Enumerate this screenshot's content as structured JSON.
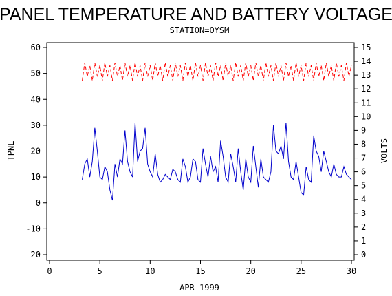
{
  "chart_data": {
    "type": "line",
    "title": "PANEL TEMPERATURE AND BATTERY VOLTAGE",
    "subtitle": "STATION=OYSM",
    "x_label": "APR 1999",
    "y_label": "TPNL",
    "y2_label": "VOLTS",
    "x": [
      3.25,
      3.5,
      3.75,
      4,
      4.25,
      4.5,
      4.75,
      5,
      5.25,
      5.5,
      5.75,
      6,
      6.25,
      6.5,
      6.75,
      7,
      7.25,
      7.5,
      7.75,
      8,
      8.25,
      8.5,
      8.75,
      9,
      9.25,
      9.5,
      9.75,
      10,
      10.25,
      10.5,
      10.75,
      11,
      11.25,
      11.5,
      11.75,
      12,
      12.25,
      12.5,
      12.75,
      13,
      13.25,
      13.5,
      13.75,
      14,
      14.25,
      14.5,
      14.75,
      15,
      15.25,
      15.5,
      15.75,
      16,
      16.25,
      16.5,
      16.75,
      17,
      17.25,
      17.5,
      17.75,
      18,
      18.25,
      18.5,
      18.75,
      19,
      19.25,
      19.5,
      19.75,
      20,
      20.25,
      20.5,
      20.75,
      21,
      21.25,
      21.5,
      21.75,
      22,
      22.25,
      22.5,
      22.75,
      23,
      23.25,
      23.5,
      23.75,
      24,
      24.25,
      24.5,
      24.75,
      25,
      25.25,
      25.5,
      25.75,
      26,
      26.25,
      26.5,
      26.75,
      27,
      27.25,
      27.5,
      27.75,
      28,
      28.25,
      28.5,
      28.75,
      29,
      29.25,
      29.5,
      29.75,
      30
    ],
    "series": [
      {
        "name": "TPNL",
        "color": "#0000cc",
        "axis": "y",
        "dashed": false,
        "values": [
          9,
          15,
          17,
          10,
          16,
          29,
          20,
          10,
          9,
          14,
          12,
          5,
          1,
          15,
          10,
          17,
          15,
          28,
          16,
          12,
          10,
          31,
          16,
          20,
          21,
          29,
          15,
          12,
          10,
          19,
          11,
          8,
          9,
          11,
          10,
          9,
          13,
          12,
          9,
          8,
          17,
          14,
          8,
          10,
          17,
          16,
          9,
          8,
          21,
          15,
          10,
          18,
          12,
          14,
          8,
          24,
          18,
          10,
          8,
          19,
          14,
          8,
          21,
          12,
          5,
          17,
          10,
          8,
          22,
          14,
          6,
          17,
          10,
          9,
          8,
          12,
          30,
          20,
          19,
          22,
          17,
          31,
          16,
          10,
          9,
          16,
          10,
          4,
          3,
          14,
          9,
          8,
          26,
          20,
          18,
          12,
          20,
          16,
          12,
          10,
          15,
          11,
          10,
          10,
          14,
          11,
          10,
          9
        ]
      },
      {
        "name": "VOLTS",
        "color": "#ff0000",
        "axis": "y2",
        "dashed": true,
        "values": [
          12.6,
          13.9,
          12.9,
          13.7,
          12.6,
          13.9,
          12.9,
          13.7,
          12.6,
          13.9,
          12.9,
          13.7,
          12.6,
          13.9,
          12.9,
          13.7,
          12.6,
          13.9,
          12.9,
          13.7,
          12.6,
          13.9,
          12.9,
          13.7,
          12.6,
          13.9,
          12.9,
          13.7,
          12.6,
          13.9,
          12.9,
          13.7,
          12.6,
          13.9,
          12.9,
          13.7,
          12.6,
          13.9,
          12.9,
          13.7,
          12.6,
          13.9,
          12.9,
          13.7,
          12.6,
          13.9,
          12.9,
          13.7,
          12.6,
          13.9,
          12.9,
          13.7,
          12.6,
          13.9,
          12.9,
          13.7,
          12.6,
          13.9,
          12.9,
          13.7,
          12.6,
          13.9,
          12.9,
          13.7,
          12.6,
          13.9,
          12.9,
          13.7,
          12.6,
          13.9,
          12.9,
          13.7,
          12.6,
          13.9,
          12.9,
          13.7,
          12.6,
          13.9,
          12.9,
          13.7,
          12.6,
          13.9,
          12.9,
          13.7,
          12.6,
          13.9,
          12.9,
          13.7,
          12.6,
          13.9,
          12.9,
          13.7,
          12.6,
          13.9,
          12.9,
          13.7,
          12.6,
          13.9,
          12.9,
          13.7,
          12.6,
          13.9,
          12.9,
          13.7,
          12.6,
          13.9,
          12.9,
          13.7
        ]
      }
    ],
    "xlim": [
      0,
      30
    ],
    "xticks": [
      0,
      5,
      10,
      15,
      20,
      25,
      30
    ],
    "ylim": [
      -20,
      60
    ],
    "yticks": [
      -20,
      -10,
      0,
      10,
      20,
      30,
      40,
      50,
      60
    ],
    "y2lim": [
      0,
      15
    ],
    "y2ticks": [
      0,
      1,
      2,
      3,
      4,
      5,
      6,
      7,
      8,
      9,
      10,
      11,
      12,
      13,
      14,
      15
    ]
  }
}
